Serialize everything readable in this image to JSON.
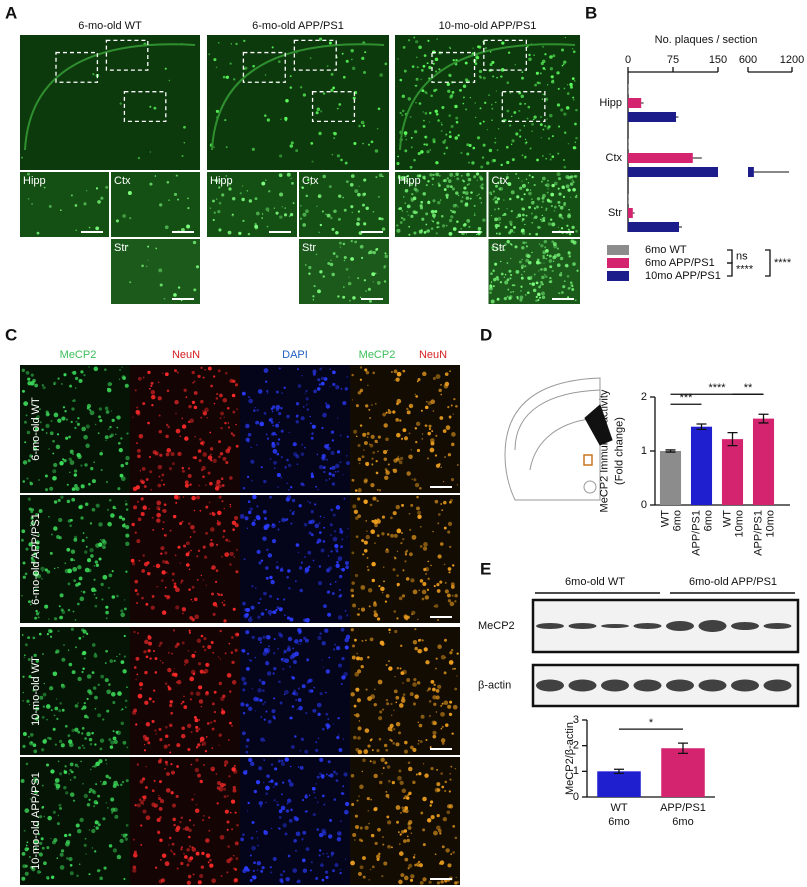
{
  "panel_labels": [
    "A",
    "B",
    "C",
    "D",
    "E"
  ],
  "panel_a": {
    "columns": [
      "6-mo-old WT",
      "6-mo-old APP/PS1",
      "10-mo-old APP/PS1"
    ],
    "regions": [
      "Hipp",
      "Ctx",
      "Str"
    ]
  },
  "panel_c": {
    "channels": [
      "MeCP2",
      "NeuN",
      "DAPI"
    ],
    "merge": [
      "MeCP2",
      "NeuN"
    ],
    "rows": [
      "6-mo-old WT",
      "6-mo-old APP/PS1",
      "10-mo-old WT",
      "10-mo-old APP/PS1"
    ]
  },
  "panel_e_blot": {
    "groups": [
      "6mo-old WT",
      "6mo-old APP/PS1"
    ],
    "bands": [
      "MeCP2",
      "β-actin"
    ]
  },
  "chart_data": [
    {
      "type": "hbar",
      "title": "No. plaques / section",
      "categories": [
        "Hipp",
        "Ctx",
        "Str"
      ],
      "series": [
        {
          "name": "6mo WT",
          "color": "#8c8c8c",
          "values": [
            1,
            1,
            1
          ],
          "errors": [
            0.5,
            0.5,
            0.5
          ]
        },
        {
          "name": "6mo APP/PS1",
          "color": "#d4246f",
          "values": [
            22,
            108,
            8
          ],
          "errors": [
            4,
            15,
            3
          ]
        },
        {
          "name": "10mo APP/PS1",
          "color": "#1c1c8a",
          "values": [
            80,
            680,
            85
          ],
          "errors": [
            4,
            480,
            5
          ]
        }
      ],
      "xlim": [
        0,
        1200
      ],
      "xbreak": [
        150,
        600
      ],
      "xticks": [
        0,
        75,
        150,
        600,
        1200
      ],
      "significance": [
        {
          "pair": [
            0,
            1
          ],
          "label": "ns"
        },
        {
          "pair": [
            1,
            2
          ],
          "label": "****"
        },
        {
          "pair": [
            0,
            2
          ],
          "label": "****"
        }
      ]
    },
    {
      "type": "bar",
      "categories": [
        [
          "WT",
          "6mo"
        ],
        [
          "APP/PS1",
          "6mo"
        ],
        [
          "WT",
          "10mo"
        ],
        [
          "APP/PS1",
          "10mo"
        ]
      ],
      "values": [
        1.0,
        1.45,
        1.22,
        1.6
      ],
      "errors": [
        0.02,
        0.05,
        0.12,
        0.08
      ],
      "colors": [
        "#8c8c8c",
        "#1f1fd0",
        "#d4246f",
        "#d4246f"
      ],
      "ylabel": [
        "MeCP2 Immunoreactivity",
        "(Fold change)"
      ],
      "ylim": [
        0,
        2
      ],
      "yticks": [
        0,
        1,
        2
      ],
      "significance": [
        {
          "pair": [
            0,
            1
          ],
          "label": "***"
        },
        {
          "pair": [
            0,
            3
          ],
          "label": "****"
        },
        {
          "pair": [
            2,
            3
          ],
          "label": "**"
        }
      ]
    },
    {
      "type": "bar",
      "categories": [
        [
          "WT",
          "6mo"
        ],
        [
          "APP/PS1",
          "6mo"
        ]
      ],
      "values": [
        1.0,
        1.9
      ],
      "errors": [
        0.08,
        0.2
      ],
      "colors": [
        "#1f1fd0",
        "#d4246f"
      ],
      "ylabel": [
        "MeCP2/β-actin"
      ],
      "ylim": [
        0,
        3
      ],
      "yticks": [
        0,
        1,
        2,
        3
      ],
      "significance": [
        {
          "pair": [
            0,
            1
          ],
          "label": "*"
        }
      ]
    }
  ]
}
